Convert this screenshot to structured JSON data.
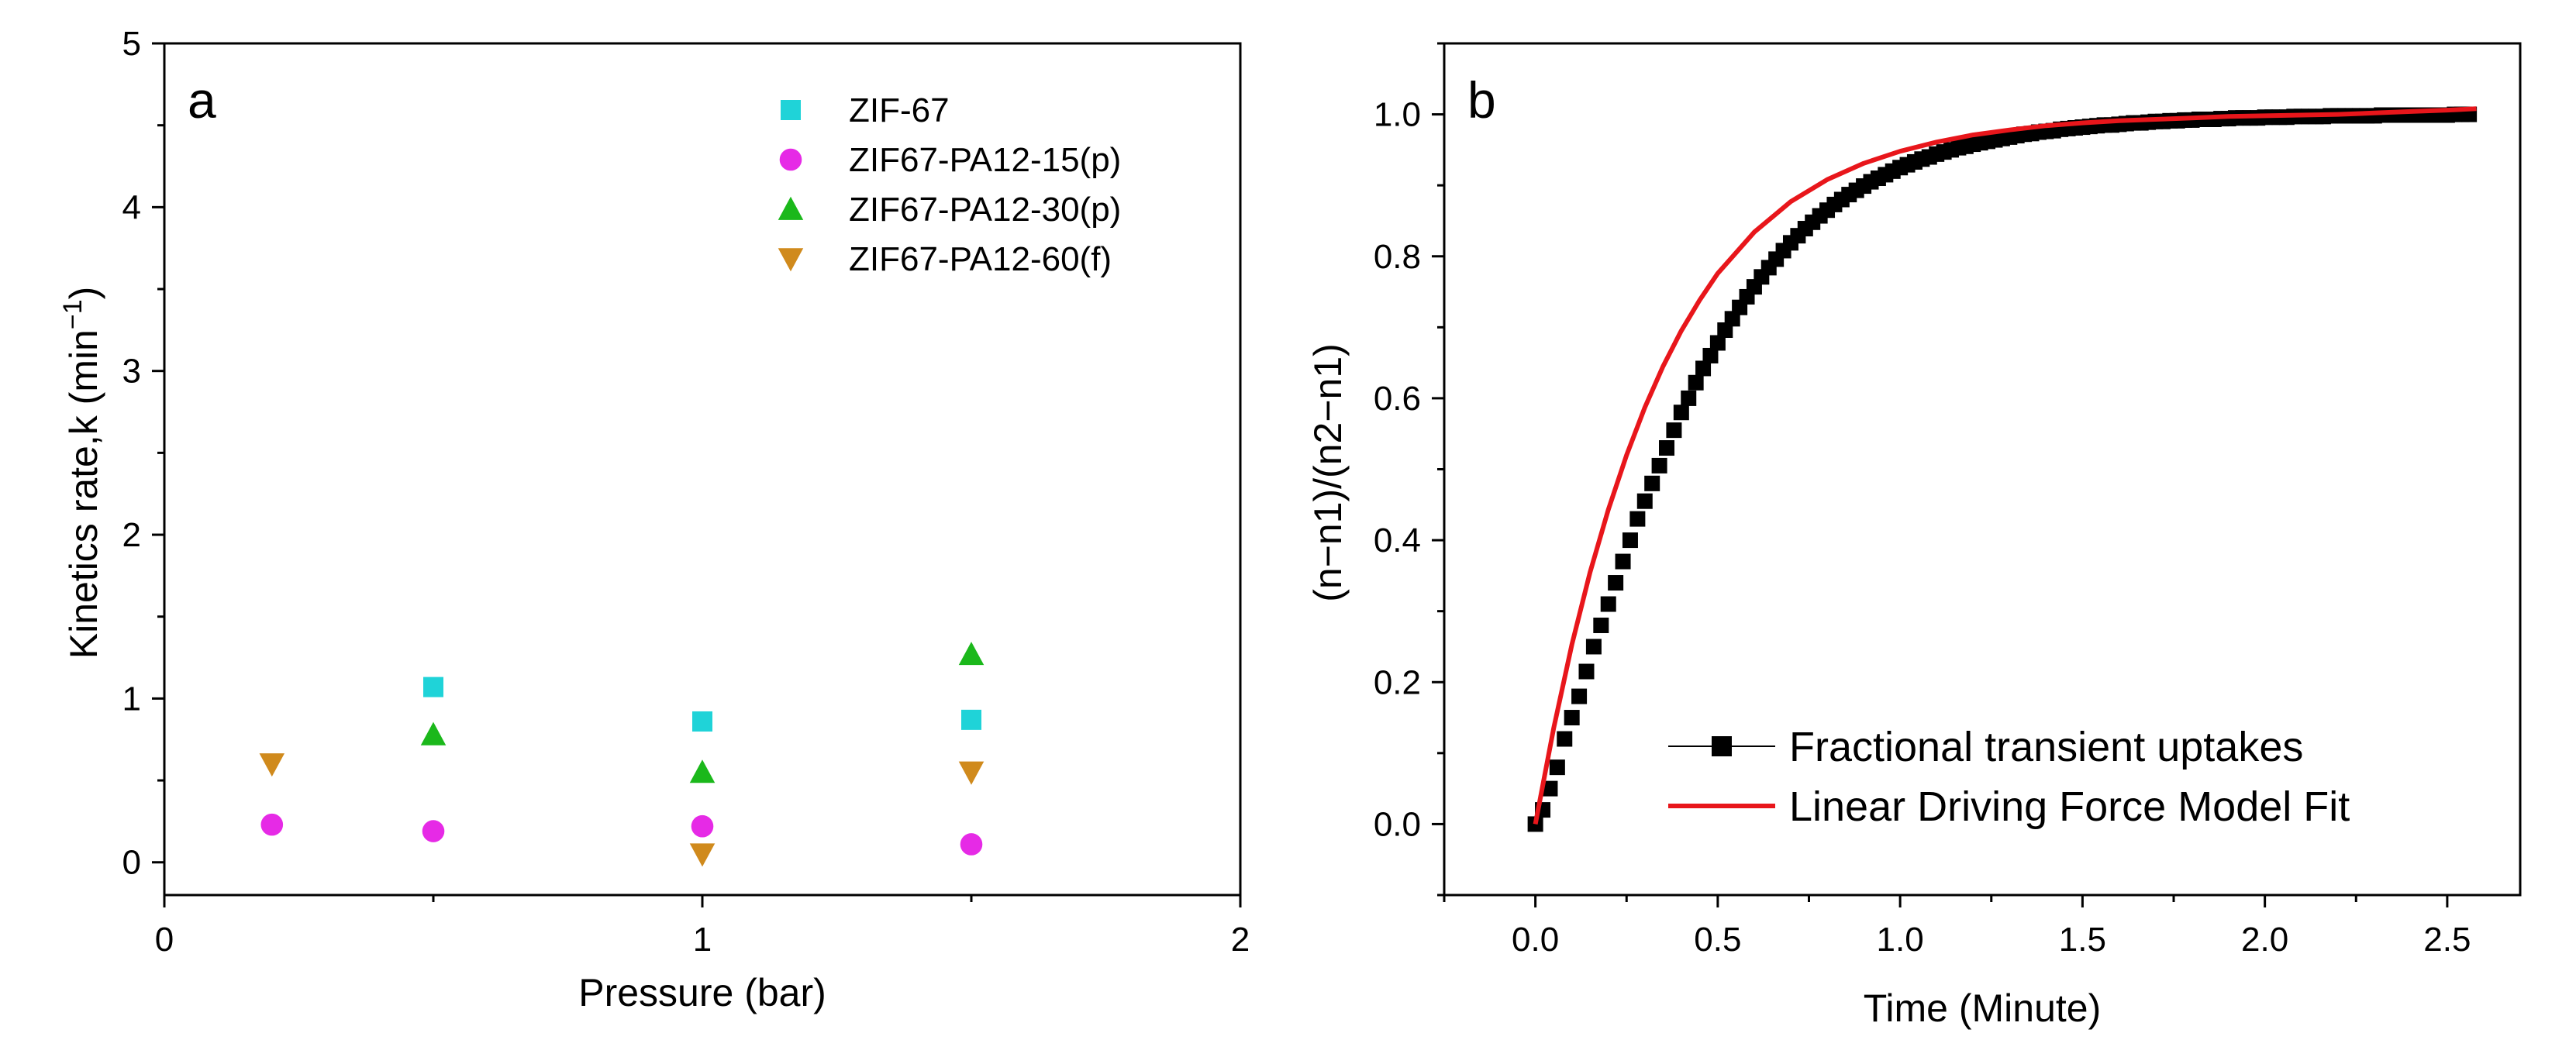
{
  "chart_data": [
    {
      "panel": "a",
      "type": "scatter",
      "xlabel": "Pressure (bar)",
      "ylabel": "Kinetics rate,k (min",
      "ylabel_sup": "−1",
      "ylabel_close": ")",
      "xlim": [
        0,
        2
      ],
      "ylim": [
        -0.2,
        5
      ],
      "xticks": [
        0,
        1,
        2
      ],
      "xtick_labels": [
        "0",
        "1",
        "2"
      ],
      "yticks": [
        0,
        1,
        2,
        3,
        4,
        5
      ],
      "ytick_labels": [
        "0",
        "1",
        "2",
        "3",
        "4",
        "5"
      ],
      "grid": false,
      "legend_position": "top-right",
      "series": [
        {
          "name": "ZIF-67",
          "marker": "square",
          "color": "#1fd3d8",
          "x": [
            0.5,
            1.0,
            1.5
          ],
          "y": [
            1.07,
            0.86,
            0.87
          ]
        },
        {
          "name": "ZIF67-PA12-15(p)",
          "marker": "circle",
          "color": "#e62ae6",
          "x": [
            0.2,
            0.5,
            1.0,
            1.5
          ],
          "y": [
            0.23,
            0.19,
            0.22,
            0.11
          ]
        },
        {
          "name": "ZIF67-PA12-30(p)",
          "marker": "triangle-up",
          "color": "#1bb81b",
          "x": [
            0.5,
            1.0,
            1.5
          ],
          "y": [
            0.78,
            0.55,
            1.27
          ]
        },
        {
          "name": "ZIF67-PA12-60(f)",
          "marker": "triangle-down",
          "color": "#d08a1c",
          "x": [
            0.2,
            1.0,
            1.5
          ],
          "y": [
            0.6,
            0.05,
            0.55
          ]
        }
      ]
    },
    {
      "panel": "b",
      "type": "line",
      "xlabel": "Time (Minute)",
      "ylabel": "(n−n1)/(n2−n1)",
      "xlim": [
        -0.25,
        2.7
      ],
      "ylim": [
        -0.1,
        1.1
      ],
      "xticks": [
        0,
        0.5,
        1,
        1.5,
        2,
        2.5
      ],
      "xtick_labels": [
        "0.0",
        "0.5",
        "1.0",
        "1.5",
        "2.0",
        "2.5"
      ],
      "yticks": [
        0,
        0.2,
        0.4,
        0.6,
        0.8,
        1
      ],
      "ytick_labels": [
        "0.0",
        "0.2",
        "0.4",
        "0.6",
        "0.8",
        "1.0"
      ],
      "grid": false,
      "legend_position": "bottom-right",
      "series": [
        {
          "name": "Fractional transient uptakes",
          "kind": "markers",
          "marker": "square",
          "color": "#000000",
          "x": [
            0.0,
            0.02,
            0.04,
            0.06,
            0.08,
            0.1,
            0.12,
            0.14,
            0.16,
            0.18,
            0.2,
            0.22,
            0.24,
            0.26,
            0.28,
            0.3,
            0.32,
            0.34,
            0.36,
            0.38,
            0.4,
            0.42,
            0.44,
            0.46,
            0.48,
            0.5,
            0.52,
            0.54,
            0.56,
            0.58,
            0.6,
            0.62,
            0.64,
            0.66,
            0.68,
            0.7,
            0.72,
            0.74,
            0.76,
            0.78,
            0.8,
            0.82,
            0.84,
            0.86,
            0.88,
            0.9,
            0.92,
            0.94,
            0.96,
            0.98,
            1.0,
            1.02,
            1.04,
            1.06,
            1.08,
            1.1,
            1.12,
            1.14,
            1.16,
            1.18,
            1.2,
            1.22,
            1.24,
            1.26,
            1.28,
            1.3,
            1.32,
            1.34,
            1.36,
            1.38,
            1.4,
            1.42,
            1.44,
            1.46,
            1.48,
            1.5,
            1.52,
            1.54,
            1.56,
            1.58,
            1.6,
            1.62,
            1.64,
            1.66,
            1.68,
            1.7,
            1.72,
            1.74,
            1.76,
            1.78,
            1.8,
            1.82,
            1.84,
            1.86,
            1.88,
            1.9,
            1.92,
            1.94,
            1.96,
            1.98,
            2.0,
            2.02,
            2.04,
            2.06,
            2.08,
            2.1,
            2.12,
            2.14,
            2.16,
            2.18,
            2.2,
            2.22,
            2.24,
            2.26,
            2.28,
            2.3,
            2.32,
            2.34,
            2.36,
            2.38,
            2.4,
            2.42,
            2.44,
            2.46,
            2.48,
            2.5,
            2.52,
            2.54,
            2.56
          ],
          "y": [
            0.0,
            0.02,
            0.05,
            0.08,
            0.12,
            0.15,
            0.18,
            0.215,
            0.25,
            0.28,
            0.31,
            0.34,
            0.37,
            0.4,
            0.43,
            0.455,
            0.48,
            0.505,
            0.53,
            0.555,
            0.58,
            0.6,
            0.622,
            0.642,
            0.66,
            0.678,
            0.696,
            0.712,
            0.728,
            0.743,
            0.757,
            0.771,
            0.784,
            0.796,
            0.808,
            0.819,
            0.829,
            0.839,
            0.848,
            0.857,
            0.865,
            0.873,
            0.88,
            0.887,
            0.893,
            0.899,
            0.905,
            0.91,
            0.915,
            0.92,
            0.925,
            0.929,
            0.933,
            0.937,
            0.94,
            0.944,
            0.947,
            0.95,
            0.953,
            0.955,
            0.958,
            0.96,
            0.962,
            0.964,
            0.966,
            0.968,
            0.97,
            0.972,
            0.973,
            0.975,
            0.976,
            0.977,
            0.979,
            0.98,
            0.981,
            0.982,
            0.983,
            0.984,
            0.985,
            0.985,
            0.986,
            0.987,
            0.988,
            0.988,
            0.989,
            0.99,
            0.99,
            0.991,
            0.991,
            0.992,
            0.992,
            0.993,
            0.993,
            0.993,
            0.994,
            0.994,
            0.995,
            0.995,
            0.995,
            0.995,
            0.996,
            0.996,
            0.996,
            0.996,
            0.997,
            0.997,
            0.997,
            0.997,
            0.997,
            0.998,
            0.998,
            0.998,
            0.998,
            0.998,
            0.998,
            0.998,
            0.999,
            0.999,
            0.999,
            0.999,
            0.999,
            0.999,
            0.999,
            0.999,
            0.999,
            0.999,
            1.0,
            1.0,
            1.0
          ]
        },
        {
          "name": "Linear Driving Force Model Fit",
          "kind": "line",
          "color": "#e8161b",
          "x": [
            0,
            0.05,
            0.1,
            0.15,
            0.2,
            0.25,
            0.3,
            0.35,
            0.4,
            0.45,
            0.5,
            0.6,
            0.7,
            0.8,
            0.9,
            1.0,
            1.1,
            1.2,
            1.3,
            1.4,
            1.5,
            1.6,
            1.7,
            1.8,
            1.9,
            2.0,
            2.1,
            2.2,
            2.3,
            2.4,
            2.5,
            2.58
          ],
          "y": [
            0.0,
            0.135,
            0.253,
            0.355,
            0.443,
            0.52,
            0.587,
            0.645,
            0.695,
            0.738,
            0.776,
            0.834,
            0.877,
            0.908,
            0.931,
            0.948,
            0.961,
            0.971,
            0.978,
            0.984,
            0.988,
            0.991,
            0.993,
            0.995,
            0.997,
            0.998,
            0.999,
            1.0,
            1.002,
            1.004,
            1.006,
            1.008
          ]
        }
      ]
    }
  ]
}
